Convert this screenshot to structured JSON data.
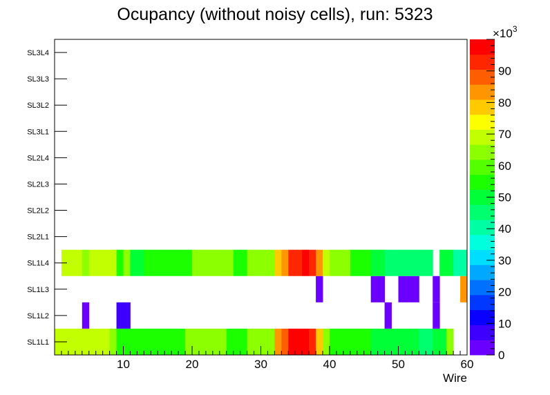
{
  "chart_data": {
    "type": "heatmap",
    "title": "Ocupancy (without noisy cells), run: 5323",
    "xlabel": "Wire",
    "ylabel": "",
    "xlim": [
      0,
      60
    ],
    "x_ticks": [
      "10",
      "20",
      "30",
      "40",
      "50",
      "60"
    ],
    "y_categories": [
      "SL1L1",
      "SL1L2",
      "SL1L3",
      "SL1L4",
      "SL2L1",
      "SL2L2",
      "SL2L3",
      "SL2L4",
      "SL3L1",
      "SL3L2",
      "SL3L3",
      "SL3L4"
    ],
    "z_range": [
      0,
      100000
    ],
    "z_multiplier": "×10",
    "z_exponent": "3",
    "z_ticks": [
      "0",
      "10",
      "20",
      "30",
      "40",
      "50",
      "60",
      "70",
      "80",
      "90"
    ],
    "z_tick_values": [
      0,
      10,
      20,
      30,
      40,
      50,
      60,
      70,
      80,
      90
    ],
    "z_units": 1000,
    "palette": [
      "#6a00ff",
      "#3d00ff",
      "#0a00ff",
      "#0038ff",
      "#0070ff",
      "#00a8ff",
      "#00deff",
      "#00ffdc",
      "#00ffa5",
      "#00ff6e",
      "#00ff36",
      "#1cff00",
      "#54ff00",
      "#8cff00",
      "#c2ff00",
      "#fbff00",
      "#ffcb00",
      "#ff9500",
      "#ff5e00",
      "#ff2600",
      "#ff0000"
    ],
    "rows": [
      {
        "layer": "SL1L1",
        "values": [
          67000,
          67000,
          67000,
          67000,
          67000,
          67000,
          67000,
          67000,
          65000,
          57000,
          55000,
          55000,
          55000,
          57000,
          57000,
          55000,
          57000,
          57000,
          57000,
          62000,
          62000,
          62000,
          62000,
          62000,
          62000,
          57000,
          57000,
          57000,
          65000,
          65000,
          65000,
          65000,
          85000,
          88000,
          98000,
          98000,
          98000,
          92000,
          78000,
          65000,
          57000,
          55000,
          55000,
          55000,
          55000,
          55000,
          50000,
          50000,
          50000,
          50000,
          50000,
          50000,
          50000,
          45000,
          45000,
          50000,
          50000,
          62000,
          0,
          0
        ]
      },
      {
        "layer": "SL1L2",
        "values": [
          0,
          0,
          0,
          0,
          3000,
          0,
          0,
          0,
          0,
          5000,
          5000,
          0,
          0,
          0,
          0,
          0,
          0,
          0,
          0,
          0,
          0,
          0,
          0,
          0,
          0,
          0,
          0,
          0,
          0,
          0,
          0,
          0,
          0,
          0,
          0,
          0,
          0,
          0,
          0,
          0,
          0,
          0,
          0,
          0,
          0,
          0,
          0,
          0,
          3000,
          0,
          0,
          0,
          0,
          0,
          0,
          3000,
          0,
          0,
          0,
          0
        ]
      },
      {
        "layer": "SL1L3",
        "values": [
          0,
          0,
          0,
          0,
          0,
          0,
          0,
          0,
          0,
          0,
          0,
          0,
          0,
          0,
          0,
          0,
          0,
          0,
          0,
          0,
          0,
          0,
          0,
          0,
          0,
          0,
          0,
          0,
          0,
          0,
          0,
          0,
          0,
          0,
          0,
          0,
          0,
          0,
          3000,
          0,
          0,
          0,
          0,
          0,
          0,
          0,
          3000,
          3000,
          0,
          0,
          3000,
          3000,
          3000,
          0,
          0,
          3000,
          0,
          0,
          0,
          85000
        ]
      },
      {
        "layer": "SL1L4",
        "values": [
          0,
          67000,
          67000,
          67000,
          62000,
          67000,
          67000,
          67000,
          67000,
          57000,
          62000,
          50000,
          50000,
          55000,
          55000,
          55000,
          57000,
          55000,
          55000,
          55000,
          62000,
          62000,
          62000,
          62000,
          62000,
          62000,
          57000,
          57000,
          62000,
          62000,
          62000,
          62000,
          78000,
          85000,
          95000,
          95000,
          98000,
          92000,
          85000,
          70000,
          62000,
          62000,
          62000,
          57000,
          57000,
          57000,
          50000,
          50000,
          45000,
          45000,
          45000,
          45000,
          45000,
          45000,
          45000,
          0,
          48000,
          48000,
          40000,
          40000
        ]
      },
      {
        "layer": "SL2L1",
        "values": []
      },
      {
        "layer": "SL2L2",
        "values": []
      },
      {
        "layer": "SL2L3",
        "values": []
      },
      {
        "layer": "SL2L4",
        "values": []
      },
      {
        "layer": "SL3L1",
        "values": []
      },
      {
        "layer": "SL3L2",
        "values": []
      },
      {
        "layer": "SL3L3",
        "values": []
      },
      {
        "layer": "SL3L4",
        "values": []
      }
    ]
  }
}
